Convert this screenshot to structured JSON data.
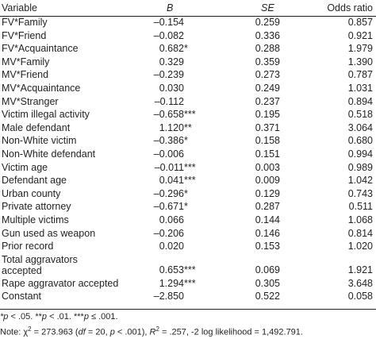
{
  "table": {
    "headers": {
      "variable": "Variable",
      "b": "B",
      "se": "SE",
      "odds_ratio": "Odds ratio"
    },
    "rows": [
      {
        "variable": "FV*Family",
        "b": "–0.154",
        "stars": "",
        "se": "0.259",
        "or": "0.857"
      },
      {
        "variable": "FV*Friend",
        "b": "–0.082",
        "stars": "",
        "se": "0.336",
        "or": "0.921"
      },
      {
        "variable": "FV*Acquaintance",
        "b": "0.682",
        "stars": "*",
        "se": "0.288",
        "or": "1.979"
      },
      {
        "variable": "MV*Family",
        "b": "0.329",
        "stars": "",
        "se": "0.359",
        "or": "1.390"
      },
      {
        "variable": "MV*Friend",
        "b": "–0.239",
        "stars": "",
        "se": "0.273",
        "or": "0.787"
      },
      {
        "variable": "MV*Acquaintance",
        "b": "0.030",
        "stars": "",
        "se": "0.249",
        "or": "1.031"
      },
      {
        "variable": "MV*Stranger",
        "b": "–0.112",
        "stars": "",
        "se": "0.237",
        "or": "0.894"
      },
      {
        "variable": "Victim illegal activity",
        "b": "–0.658",
        "stars": "***",
        "se": "0.195",
        "or": "0.518"
      },
      {
        "variable": "Male defendant",
        "b": "1.120",
        "stars": "**",
        "se": "0.371",
        "or": "3.064"
      },
      {
        "variable": "Non-White victim",
        "b": "–0.386",
        "stars": "*",
        "se": "0.158",
        "or": "0.680"
      },
      {
        "variable": "Non-White defendant",
        "b": "–0.006",
        "stars": "",
        "se": "0.151",
        "or": "0.994"
      },
      {
        "variable": "Victim age",
        "b": "–0.011",
        "stars": "***",
        "se": "0.003",
        "or": "0.989"
      },
      {
        "variable": "Defendant age",
        "b": "0.041",
        "stars": "***",
        "se": "0.009",
        "or": "1.042"
      },
      {
        "variable": "Urban county",
        "b": "–0.296",
        "stars": "*",
        "se": "0.129",
        "or": "0.743"
      },
      {
        "variable": "Private attorney",
        "b": "–0.671",
        "stars": "*",
        "se": "0.287",
        "or": "0.511"
      },
      {
        "variable": "Multiple victims",
        "b": "0.066",
        "stars": "",
        "se": "0.144",
        "or": "1.068"
      },
      {
        "variable": "Gun used as weapon",
        "b": "–0.206",
        "stars": "",
        "se": "0.146",
        "or": "0.814"
      },
      {
        "variable": "Prior record",
        "b": "0.020",
        "stars": "",
        "se": "0.153",
        "or": "1.020"
      },
      {
        "variable": "Total aggravators accepted",
        "b": "0.653",
        "stars": "***",
        "se": "0.069",
        "or": "1.921"
      },
      {
        "variable": "Rape aggravator accepted",
        "b": "1.294",
        "stars": "***",
        "se": "0.305",
        "or": "3.648"
      },
      {
        "variable": "Constant",
        "b": "–2.850",
        "stars": "",
        "se": "0.522",
        "or": "0.058"
      }
    ]
  },
  "notes": {
    "line1": "*p < .05. **p < .01. ***p ≤ .001.",
    "line2": "Note: χ² = 273.963 (df = 20, p < .001), R² = .257, -2 log likelihood = 1,492.791."
  }
}
